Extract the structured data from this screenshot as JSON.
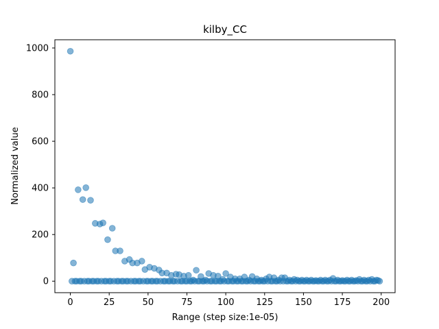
{
  "chart_data": {
    "type": "scatter",
    "title": "kilby_CC",
    "xlabel": "Range (step size:1e-05)",
    "ylabel": "Normalized value",
    "xlim": [
      -9.95,
      208.95
    ],
    "ylim": [
      -49.3,
      1035.3
    ],
    "xticks": [
      0,
      25,
      50,
      75,
      100,
      125,
      150,
      175,
      200
    ],
    "yticks": [
      0,
      200,
      400,
      600,
      800,
      1000
    ],
    "grid": false,
    "legend": "none",
    "marker_color": "#1f77b4",
    "marker_alpha": 0.55,
    "points": [
      [
        0,
        986
      ],
      [
        1,
        0
      ],
      [
        2,
        78
      ],
      [
        3,
        0
      ],
      [
        4,
        0
      ],
      [
        5,
        392
      ],
      [
        6,
        0
      ],
      [
        7,
        0
      ],
      [
        8,
        350
      ],
      [
        9,
        0
      ],
      [
        10,
        401
      ],
      [
        11,
        0
      ],
      [
        12,
        0
      ],
      [
        13,
        347
      ],
      [
        14,
        0
      ],
      [
        15,
        0
      ],
      [
        16,
        248
      ],
      [
        17,
        0
      ],
      [
        18,
        0
      ],
      [
        19,
        245
      ],
      [
        20,
        0
      ],
      [
        21,
        250
      ],
      [
        22,
        0
      ],
      [
        23,
        0
      ],
      [
        24,
        178
      ],
      [
        25,
        0
      ],
      [
        26,
        0
      ],
      [
        27,
        227
      ],
      [
        28,
        0
      ],
      [
        29,
        130
      ],
      [
        30,
        0
      ],
      [
        31,
        0
      ],
      [
        32,
        130
      ],
      [
        33,
        0
      ],
      [
        34,
        0
      ],
      [
        35,
        86
      ],
      [
        36,
        0
      ],
      [
        37,
        0
      ],
      [
        38,
        93
      ],
      [
        39,
        0
      ],
      [
        40,
        78
      ],
      [
        41,
        0
      ],
      [
        42,
        0
      ],
      [
        43,
        78
      ],
      [
        44,
        0
      ],
      [
        45,
        0
      ],
      [
        46,
        86
      ],
      [
        47,
        0
      ],
      [
        48,
        50
      ],
      [
        49,
        0
      ],
      [
        50,
        0
      ],
      [
        51,
        60
      ],
      [
        52,
        0
      ],
      [
        53,
        0
      ],
      [
        54,
        55
      ],
      [
        55,
        0
      ],
      [
        56,
        0
      ],
      [
        57,
        48
      ],
      [
        58,
        0
      ],
      [
        59,
        35
      ],
      [
        60,
        0
      ],
      [
        61,
        0
      ],
      [
        62,
        35
      ],
      [
        63,
        0
      ],
      [
        64,
        0
      ],
      [
        65,
        25
      ],
      [
        66,
        0
      ],
      [
        67,
        0
      ],
      [
        68,
        30
      ],
      [
        69,
        0
      ],
      [
        70,
        28
      ],
      [
        71,
        0
      ],
      [
        72,
        0
      ],
      [
        73,
        22
      ],
      [
        74,
        0
      ],
      [
        75,
        0
      ],
      [
        76,
        25
      ],
      [
        77,
        0
      ],
      [
        78,
        0
      ],
      [
        79,
        5
      ],
      [
        80,
        0
      ],
      [
        81,
        47
      ],
      [
        82,
        0
      ],
      [
        83,
        0
      ],
      [
        84,
        20
      ],
      [
        85,
        0
      ],
      [
        86,
        0
      ],
      [
        87,
        5
      ],
      [
        88,
        0
      ],
      [
        89,
        33
      ],
      [
        90,
        0
      ],
      [
        91,
        0
      ],
      [
        92,
        25
      ],
      [
        93,
        0
      ],
      [
        94,
        0
      ],
      [
        95,
        22
      ],
      [
        96,
        0
      ],
      [
        97,
        0
      ],
      [
        98,
        8
      ],
      [
        99,
        0
      ],
      [
        100,
        33
      ],
      [
        101,
        0
      ],
      [
        102,
        0
      ],
      [
        103,
        18
      ],
      [
        104,
        0
      ],
      [
        105,
        0
      ],
      [
        106,
        10
      ],
      [
        107,
        0
      ],
      [
        108,
        0
      ],
      [
        109,
        10
      ],
      [
        110,
        0
      ],
      [
        111,
        0
      ],
      [
        112,
        18
      ],
      [
        113,
        0
      ],
      [
        114,
        0
      ],
      [
        115,
        5
      ],
      [
        116,
        0
      ],
      [
        117,
        20
      ],
      [
        118,
        0
      ],
      [
        119,
        0
      ],
      [
        120,
        10
      ],
      [
        121,
        0
      ],
      [
        122,
        0
      ],
      [
        123,
        5
      ],
      [
        124,
        0
      ],
      [
        125,
        0
      ],
      [
        126,
        10
      ],
      [
        127,
        0
      ],
      [
        128,
        18
      ],
      [
        129,
        0
      ],
      [
        130,
        0
      ],
      [
        131,
        15
      ],
      [
        132,
        0
      ],
      [
        133,
        0
      ],
      [
        134,
        5
      ],
      [
        135,
        0
      ],
      [
        136,
        15
      ],
      [
        137,
        0
      ],
      [
        138,
        15
      ],
      [
        139,
        0
      ],
      [
        140,
        0
      ],
      [
        141,
        5
      ],
      [
        142,
        0
      ],
      [
        143,
        0
      ],
      [
        144,
        8
      ],
      [
        145,
        0
      ],
      [
        146,
        5
      ],
      [
        147,
        0
      ],
      [
        148,
        0
      ],
      [
        149,
        5
      ],
      [
        150,
        0
      ],
      [
        151,
        0
      ],
      [
        152,
        5
      ],
      [
        153,
        0
      ],
      [
        154,
        0
      ],
      [
        155,
        5
      ],
      [
        156,
        0
      ],
      [
        157,
        0
      ],
      [
        158,
        3
      ],
      [
        159,
        0
      ],
      [
        160,
        0
      ],
      [
        161,
        5
      ],
      [
        162,
        0
      ],
      [
        163,
        0
      ],
      [
        164,
        5
      ],
      [
        165,
        0
      ],
      [
        166,
        0
      ],
      [
        167,
        5
      ],
      [
        168,
        0
      ],
      [
        169,
        12
      ],
      [
        170,
        0
      ],
      [
        171,
        0
      ],
      [
        172,
        5
      ],
      [
        173,
        0
      ],
      [
        174,
        0
      ],
      [
        175,
        3
      ],
      [
        176,
        0
      ],
      [
        177,
        0
      ],
      [
        178,
        5
      ],
      [
        179,
        0
      ],
      [
        180,
        0
      ],
      [
        181,
        5
      ],
      [
        182,
        0
      ],
      [
        183,
        0
      ],
      [
        184,
        3
      ],
      [
        185,
        0
      ],
      [
        186,
        8
      ],
      [
        187,
        0
      ],
      [
        188,
        0
      ],
      [
        189,
        5
      ],
      [
        190,
        0
      ],
      [
        191,
        0
      ],
      [
        192,
        5
      ],
      [
        193,
        0
      ],
      [
        194,
        8
      ],
      [
        195,
        0
      ],
      [
        196,
        0
      ],
      [
        197,
        5
      ],
      [
        198,
        3
      ],
      [
        199,
        0
      ]
    ]
  }
}
